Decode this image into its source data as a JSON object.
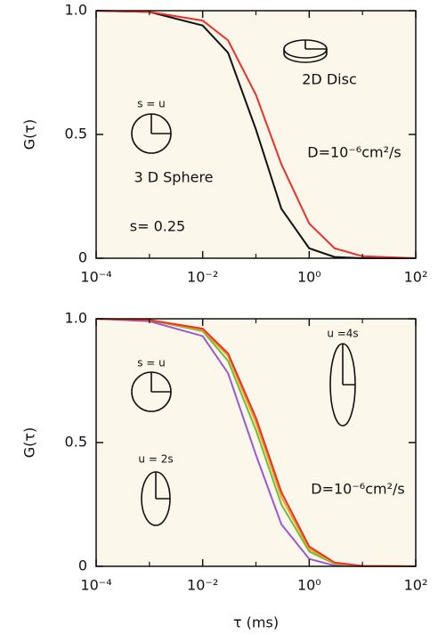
{
  "chart_data": [
    {
      "type": "line",
      "ylabel": "G(τ)",
      "xscale": "log",
      "xlim": [
        0.0001,
        100
      ],
      "ylim": [
        0,
        1
      ],
      "xticks": [
        {
          "value": 0.0001,
          "label": "10⁻⁴"
        },
        {
          "value": 0.01,
          "label": "10⁻²"
        },
        {
          "value": 1,
          "label": "10⁰"
        },
        {
          "value": 100,
          "label": "10²"
        }
      ],
      "xminorticks": [
        0.001,
        0.1,
        10
      ],
      "yticks": [
        0,
        0.5,
        {
          "value": 1,
          "label": "1.0"
        }
      ],
      "x": [
        0.0001,
        0.001,
        0.01,
        0.03,
        0.1,
        0.3,
        1,
        3,
        10,
        100
      ],
      "series": [
        {
          "color": "#111111",
          "values": [
            1,
            0.995,
            0.94,
            0.83,
            0.52,
            0.2,
            0.04,
            0.005,
            0,
            0
          ]
        },
        {
          "color": "#e8322b",
          "values": [
            1,
            0.995,
            0.96,
            0.88,
            0.66,
            0.38,
            0.14,
            0.04,
            0.008,
            0
          ]
        }
      ],
      "annotations": [
        "s = u",
        "3 D Sphere",
        "s= 0.25",
        "2D Disc",
        "D=10⁻⁶cm²/s"
      ]
    },
    {
      "type": "line",
      "ylabel": "G(τ)",
      "xlabel": "τ (ms)",
      "xscale": "log",
      "xlim": [
        0.0001,
        100
      ],
      "ylim": [
        0,
        1
      ],
      "xticks": [
        {
          "value": 0.0001,
          "label": "10⁻⁴"
        },
        {
          "value": 0.01,
          "label": "10⁻²"
        },
        {
          "value": 1,
          "label": "10⁰"
        },
        {
          "value": 100,
          "label": "10²"
        }
      ],
      "xminorticks": [
        0.001,
        0.1,
        10
      ],
      "yticks": [
        0,
        0.5,
        {
          "value": 1,
          "label": "1.0"
        }
      ],
      "x": [
        0.0001,
        0.001,
        0.01,
        0.03,
        0.1,
        0.3,
        1,
        3,
        10,
        100
      ],
      "series": [
        {
          "color": "#9b59d0",
          "values": [
            1,
            0.99,
            0.93,
            0.78,
            0.45,
            0.17,
            0.03,
            0.003,
            0,
            0
          ]
        },
        {
          "color": "#6cbf3a",
          "values": [
            1,
            0.995,
            0.95,
            0.83,
            0.55,
            0.25,
            0.06,
            0.01,
            0.001,
            0
          ]
        },
        {
          "color": "#f0a020",
          "values": [
            1,
            0.995,
            0.955,
            0.85,
            0.58,
            0.28,
            0.07,
            0.012,
            0.001,
            0
          ]
        },
        {
          "color": "#e8322b",
          "values": [
            1,
            0.995,
            0.96,
            0.86,
            0.6,
            0.3,
            0.08,
            0.015,
            0.002,
            0
          ]
        }
      ],
      "annotations": [
        "s = u",
        "u = 2s",
        "u =4s",
        "D=10⁻⁶cm²/s"
      ]
    }
  ]
}
